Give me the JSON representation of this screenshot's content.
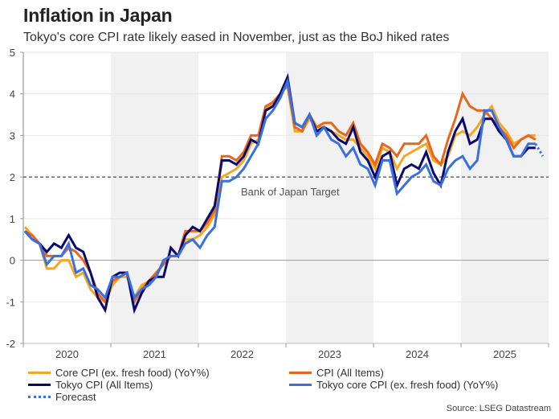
{
  "header": {
    "title": "Inflation in Japan",
    "subtitle": "Tokyo's core CPI rate likely eased in November, just as the BoJ hiked rates"
  },
  "source": "Source: LSEG Datastream",
  "chart_data": {
    "type": "line",
    "title": "Inflation in Japan",
    "subtitle": "Tokyo's core CPI rate likely eased in November, just as the BoJ hiked rates",
    "xlabel": "",
    "ylabel": "",
    "x_start": "2020-01",
    "x_frequency": "monthly",
    "categories": [
      "2020",
      "2021",
      "2022",
      "2023",
      "2024",
      "2025"
    ],
    "shaded_years": [
      "2021",
      "2023",
      "2025"
    ],
    "ylim": [
      -2,
      5
    ],
    "yticks": [
      5,
      4,
      3,
      2,
      1,
      0,
      -1,
      -2
    ],
    "grid": true,
    "legend_position": "bottom",
    "reference_line": {
      "value": 2,
      "label": "Bank of Japan Target",
      "style": "dashed",
      "color": "#666666"
    },
    "series": [
      {
        "name": "Core CPI (ex. fresh food) (YoY%)",
        "color": "#f5a623",
        "values": [
          0.8,
          0.6,
          0.4,
          -0.2,
          -0.2,
          0.0,
          0.0,
          -0.4,
          -0.3,
          -0.7,
          -0.9,
          -1.0,
          -0.6,
          -0.4,
          -0.4,
          -0.9,
          -0.6,
          -0.5,
          -0.3,
          -0.1,
          0.1,
          0.1,
          0.5,
          0.5,
          0.6,
          0.8,
          1.1,
          2.0,
          2.1,
          2.2,
          2.4,
          2.8,
          2.9,
          3.6,
          3.8,
          4.0,
          4.2,
          3.1,
          3.1,
          3.4,
          3.2,
          3.2,
          3.1,
          3.0,
          2.9,
          2.9,
          2.7,
          2.5,
          2.2,
          2.7,
          2.6,
          2.2,
          2.5,
          2.6,
          2.7,
          2.8,
          2.4,
          2.3,
          2.5,
          3.0,
          3.1,
          3.0,
          3.2,
          3.5,
          3.7,
          3.3,
          3.1,
          2.8,
          2.9,
          3.0,
          3.0
        ]
      },
      {
        "name": "CPI (All Items)",
        "color": "#e8671a",
        "values": [
          0.7,
          0.6,
          0.4,
          0.1,
          0.1,
          0.1,
          0.3,
          0.2,
          0.0,
          -0.3,
          -0.8,
          -1.0,
          -0.5,
          -0.4,
          -0.3,
          -1.0,
          -0.7,
          -0.5,
          -0.3,
          -0.1,
          0.1,
          0.1,
          0.7,
          0.7,
          0.7,
          0.9,
          1.2,
          2.5,
          2.5,
          2.4,
          2.6,
          3.0,
          3.0,
          3.7,
          3.8,
          4.0,
          4.2,
          3.2,
          3.1,
          3.5,
          3.2,
          3.3,
          3.3,
          3.1,
          3.0,
          3.3,
          2.8,
          2.6,
          2.3,
          2.8,
          2.7,
          2.5,
          2.8,
          2.8,
          2.8,
          3.0,
          2.5,
          2.3,
          2.9,
          3.4,
          4.0,
          3.7,
          3.6,
          3.6,
          3.4,
          3.2,
          3.0,
          2.7,
          2.9,
          3.0,
          2.9
        ]
      },
      {
        "name": "Tokyo CPI (All Items)",
        "color": "#0a0a6e",
        "values": [
          0.7,
          0.5,
          0.4,
          0.2,
          0.4,
          0.3,
          0.6,
          0.3,
          0.2,
          -0.3,
          -0.9,
          -1.2,
          -0.4,
          -0.3,
          -0.3,
          -1.2,
          -0.8,
          -0.5,
          -0.4,
          -0.4,
          0.3,
          0.1,
          0.6,
          0.8,
          0.7,
          1.0,
          1.3,
          2.4,
          2.4,
          2.3,
          2.5,
          2.9,
          2.8,
          3.6,
          3.7,
          4.0,
          4.4,
          3.3,
          3.2,
          3.5,
          3.1,
          3.2,
          3.1,
          2.9,
          2.8,
          3.2,
          2.6,
          2.4,
          2.0,
          2.5,
          2.6,
          1.8,
          2.2,
          2.3,
          2.2,
          2.6,
          2.1,
          1.8,
          2.6,
          3.1,
          3.4,
          2.8,
          2.9,
          3.4,
          3.4,
          3.1,
          2.9,
          2.5,
          2.5,
          2.7,
          2.7
        ]
      },
      {
        "name": "Tokyo core CPI (ex. fresh food) (YoY%)",
        "color": "#3a6fe0",
        "values": [
          0.7,
          0.5,
          0.4,
          -0.1,
          0.1,
          0.1,
          0.4,
          -0.3,
          -0.2,
          -0.6,
          -0.7,
          -0.9,
          -0.4,
          -0.4,
          -0.3,
          -0.9,
          -0.7,
          -0.6,
          -0.4,
          0.0,
          0.1,
          0.1,
          0.4,
          0.5,
          0.3,
          0.6,
          0.8,
          1.9,
          1.9,
          2.0,
          2.2,
          2.5,
          2.8,
          3.4,
          3.6,
          3.9,
          4.3,
          3.3,
          3.2,
          3.5,
          3.0,
          3.2,
          2.9,
          2.8,
          2.5,
          2.7,
          2.3,
          2.2,
          1.8,
          2.4,
          2.4,
          1.6,
          1.8,
          2.0,
          2.1,
          2.3,
          1.9,
          1.8,
          2.2,
          2.4,
          2.5,
          2.2,
          2.4,
          3.6,
          3.6,
          3.2,
          2.9,
          2.5,
          2.5,
          2.8,
          2.8
        ]
      },
      {
        "name": "Forecast",
        "color": "#3a6fe0",
        "style": "dotted",
        "x_start_index": 70,
        "values": [
          2.8,
          2.5
        ]
      }
    ],
    "legend": [
      {
        "label": "Core CPI (ex. fresh food) (YoY%)",
        "color": "#f5a623",
        "style": "solid"
      },
      {
        "label": "CPI (All Items)",
        "color": "#e8671a",
        "style": "solid"
      },
      {
        "label": "Tokyo CPI (All Items)",
        "color": "#0a0a6e",
        "style": "solid"
      },
      {
        "label": "Tokyo core CPI (ex. fresh food) (YoY%)",
        "color": "#3a6fe0",
        "style": "solid"
      },
      {
        "label": "Forecast",
        "color": "#3a6fe0",
        "style": "dotted"
      }
    ]
  }
}
